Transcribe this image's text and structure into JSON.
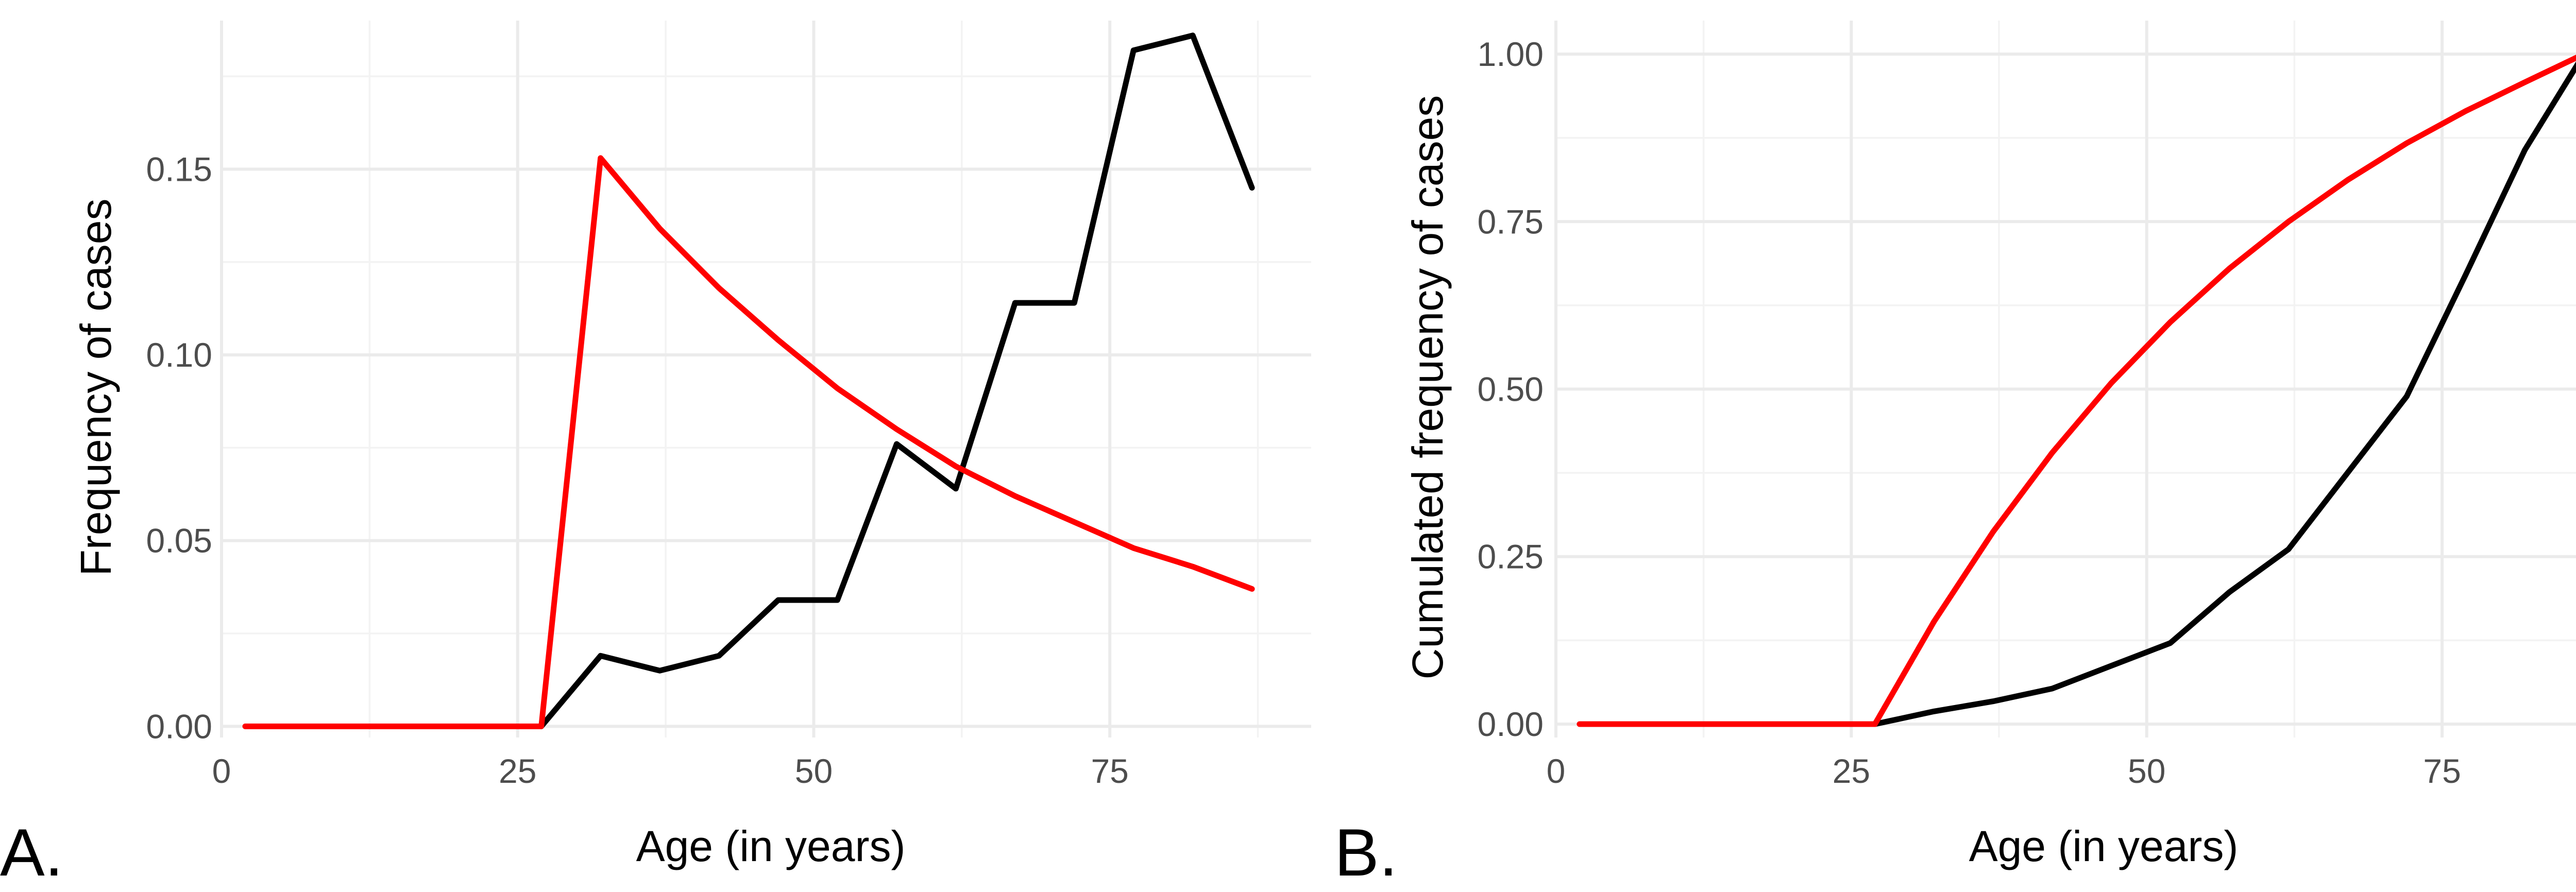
{
  "chart_data": [
    {
      "type": "line",
      "panel_label": "A.",
      "xlabel": "Age (in years)",
      "ylabel": "Frequency of cases",
      "xlim": [
        0,
        92
      ],
      "ylim": [
        -0.003,
        0.19
      ],
      "x_ticks": [
        0,
        25,
        50,
        75
      ],
      "x_tick_labels": [
        "0",
        "25",
        "50",
        "75"
      ],
      "y_ticks": [
        0.0,
        0.05,
        0.1,
        0.15
      ],
      "y_tick_labels": [
        "0.00",
        "0.05",
        "0.10",
        "0.15"
      ],
      "grid": true,
      "series": [
        {
          "color": "#000000",
          "x": [
            27,
            32,
            37,
            42,
            47,
            52,
            57,
            62,
            67,
            72,
            77,
            82,
            87
          ],
          "y": [
            0.0,
            0.019,
            0.015,
            0.019,
            0.034,
            0.034,
            0.076,
            0.064,
            0.114,
            0.114,
            0.182,
            0.186,
            0.145
          ]
        },
        {
          "color": "#ff0000",
          "x": [
            2,
            7,
            12,
            17,
            22,
            27,
            32,
            37,
            42,
            47,
            52,
            57,
            62,
            67,
            72,
            77,
            82,
            87
          ],
          "y": [
            0.0,
            0.0,
            0.0,
            0.0,
            0.0,
            0.0,
            0.153,
            0.134,
            0.118,
            0.104,
            0.091,
            0.08,
            0.07,
            0.062,
            0.055,
            0.048,
            0.043,
            0.037
          ]
        }
      ]
    },
    {
      "type": "line",
      "panel_label": "B.",
      "xlabel": "Age (in years)",
      "ylabel": "Cumulated frequency of cases",
      "xlim": [
        0,
        92
      ],
      "ylim": [
        -0.02,
        1.05
      ],
      "x_ticks": [
        0,
        25,
        50,
        75
      ],
      "x_tick_labels": [
        "0",
        "25",
        "50",
        "75"
      ],
      "y_ticks": [
        0.0,
        0.25,
        0.5,
        0.75,
        1.0
      ],
      "y_tick_labels": [
        "0.00",
        "0.25",
        "0.50",
        "0.75",
        "1.00"
      ],
      "grid": true,
      "series": [
        {
          "color": "#000000",
          "x": [
            27,
            32,
            37,
            42,
            47,
            52,
            57,
            62,
            67,
            72,
            77,
            82,
            87
          ],
          "y": [
            0.0,
            0.019,
            0.034,
            0.053,
            0.087,
            0.121,
            0.197,
            0.261,
            0.375,
            0.489,
            0.671,
            0.857,
            1.0
          ]
        },
        {
          "color": "#ff0000",
          "x": [
            2,
            7,
            12,
            17,
            22,
            27,
            32,
            37,
            42,
            47,
            52,
            57,
            62,
            67,
            72,
            77,
            82,
            87
          ],
          "y": [
            0.0,
            0.0,
            0.0,
            0.0,
            0.0,
            0.0,
            0.153,
            0.287,
            0.405,
            0.509,
            0.6,
            0.68,
            0.75,
            0.812,
            0.867,
            0.915,
            0.958,
            1.0
          ]
        }
      ]
    }
  ]
}
